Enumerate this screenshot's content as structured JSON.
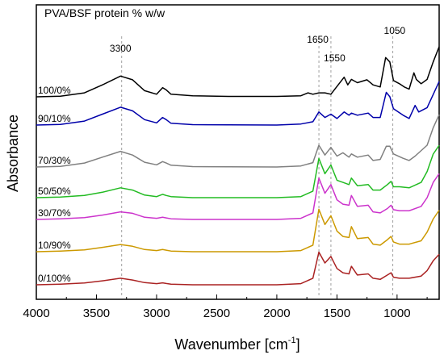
{
  "chart_data": {
    "type": "line",
    "title": "PVA/BSF protein % w/w",
    "xlabel": "Wavenumber [cm",
    "xlabel_sup": "-1",
    "xlabel_end": "]",
    "ylabel": "Absorbance",
    "xlim": [
      4000,
      650
    ],
    "x_reversed": true,
    "xticks": [
      4000,
      3500,
      3000,
      2500,
      2000,
      1500,
      1000
    ],
    "grid": false,
    "annotations": [
      {
        "text": "3300",
        "x": 3300
      },
      {
        "text": "1650",
        "x": 1650
      },
      {
        "text": "1550",
        "x": 1550
      },
      {
        "text": "1050",
        "x": 1050
      }
    ],
    "reference_lines_x": [
      3290,
      1650,
      1550,
      1035
    ],
    "series": [
      {
        "name": "100/0%",
        "color": "#000000",
        "offset": 6,
        "p": [
          [
            4000,
            0.0
          ],
          [
            3800,
            0.03
          ],
          [
            3600,
            0.18
          ],
          [
            3450,
            0.55
          ],
          [
            3300,
            0.95
          ],
          [
            3200,
            0.78
          ],
          [
            3100,
            0.28
          ],
          [
            3000,
            0.12
          ],
          [
            2950,
            0.42
          ],
          [
            2920,
            0.32
          ],
          [
            2880,
            0.12
          ],
          [
            2700,
            0.05
          ],
          [
            2400,
            0.02
          ],
          [
            2000,
            0.02
          ],
          [
            1800,
            0.05
          ],
          [
            1740,
            0.18
          ],
          [
            1700,
            0.12
          ],
          [
            1650,
            0.18
          ],
          [
            1600,
            0.18
          ],
          [
            1550,
            0.12
          ],
          [
            1440,
            0.9
          ],
          [
            1410,
            0.55
          ],
          [
            1380,
            0.8
          ],
          [
            1330,
            0.65
          ],
          [
            1250,
            0.78
          ],
          [
            1200,
            0.55
          ],
          [
            1140,
            0.45
          ],
          [
            1095,
            1.8
          ],
          [
            1060,
            1.6
          ],
          [
            1030,
            0.75
          ],
          [
            980,
            0.6
          ],
          [
            940,
            0.45
          ],
          [
            900,
            0.35
          ],
          [
            860,
            1.1
          ],
          [
            840,
            0.8
          ],
          [
            800,
            0.6
          ],
          [
            750,
            0.8
          ],
          [
            700,
            1.6
          ],
          [
            650,
            2.3
          ]
        ]
      },
      {
        "name": "90/10%",
        "color": "#0000aa",
        "offset": 5,
        "p": [
          [
            4000,
            0.0
          ],
          [
            3800,
            0.03
          ],
          [
            3600,
            0.18
          ],
          [
            3450,
            0.5
          ],
          [
            3300,
            0.82
          ],
          [
            3200,
            0.65
          ],
          [
            3100,
            0.25
          ],
          [
            3000,
            0.1
          ],
          [
            2950,
            0.35
          ],
          [
            2920,
            0.25
          ],
          [
            2880,
            0.08
          ],
          [
            2700,
            0.02
          ],
          [
            2000,
            0.0
          ],
          [
            1800,
            0.05
          ],
          [
            1700,
            0.15
          ],
          [
            1650,
            0.6
          ],
          [
            1600,
            0.35
          ],
          [
            1550,
            0.5
          ],
          [
            1500,
            0.3
          ],
          [
            1440,
            0.6
          ],
          [
            1400,
            0.45
          ],
          [
            1380,
            0.55
          ],
          [
            1330,
            0.45
          ],
          [
            1240,
            0.55
          ],
          [
            1200,
            0.35
          ],
          [
            1140,
            0.35
          ],
          [
            1090,
            1.5
          ],
          [
            1060,
            1.3
          ],
          [
            1030,
            0.75
          ],
          [
            950,
            0.45
          ],
          [
            900,
            0.3
          ],
          [
            850,
            0.9
          ],
          [
            820,
            0.6
          ],
          [
            750,
            0.8
          ],
          [
            700,
            1.4
          ],
          [
            650,
            2.0
          ]
        ]
      },
      {
        "name": "70/30%",
        "color": "#808080",
        "offset": 4,
        "p": [
          [
            4000,
            0.0
          ],
          [
            3800,
            0.03
          ],
          [
            3600,
            0.18
          ],
          [
            3450,
            0.45
          ],
          [
            3300,
            0.72
          ],
          [
            3200,
            0.55
          ],
          [
            3100,
            0.22
          ],
          [
            3000,
            0.1
          ],
          [
            2950,
            0.25
          ],
          [
            2920,
            0.18
          ],
          [
            2880,
            0.08
          ],
          [
            2700,
            0.02
          ],
          [
            2000,
            0.0
          ],
          [
            1800,
            0.05
          ],
          [
            1700,
            0.2
          ],
          [
            1650,
            1.0
          ],
          [
            1600,
            0.55
          ],
          [
            1550,
            0.9
          ],
          [
            1500,
            0.5
          ],
          [
            1450,
            0.65
          ],
          [
            1400,
            0.45
          ],
          [
            1380,
            0.6
          ],
          [
            1330,
            0.45
          ],
          [
            1240,
            0.55
          ],
          [
            1200,
            0.3
          ],
          [
            1140,
            0.35
          ],
          [
            1090,
            0.95
          ],
          [
            1060,
            0.95
          ],
          [
            1030,
            0.6
          ],
          [
            950,
            0.4
          ],
          [
            900,
            0.3
          ],
          [
            850,
            0.5
          ],
          [
            750,
            1.0
          ],
          [
            700,
            1.8
          ],
          [
            650,
            2.4
          ]
        ]
      },
      {
        "name": "50/50%",
        "color": "#22bb22",
        "offset": 3,
        "p": [
          [
            4000,
            0.0
          ],
          [
            3800,
            0.03
          ],
          [
            3600,
            0.1
          ],
          [
            3450,
            0.25
          ],
          [
            3300,
            0.45
          ],
          [
            3200,
            0.35
          ],
          [
            3100,
            0.12
          ],
          [
            3000,
            0.05
          ],
          [
            2950,
            0.15
          ],
          [
            2920,
            0.1
          ],
          [
            2880,
            0.05
          ],
          [
            2700,
            0.0
          ],
          [
            2000,
            0.0
          ],
          [
            1800,
            0.05
          ],
          [
            1700,
            0.3
          ],
          [
            1650,
            1.8
          ],
          [
            1600,
            1.1
          ],
          [
            1550,
            1.5
          ],
          [
            1500,
            0.8
          ],
          [
            1450,
            0.7
          ],
          [
            1400,
            0.6
          ],
          [
            1380,
            0.9
          ],
          [
            1330,
            0.55
          ],
          [
            1240,
            0.6
          ],
          [
            1200,
            0.35
          ],
          [
            1140,
            0.35
          ],
          [
            1080,
            0.6
          ],
          [
            1050,
            0.75
          ],
          [
            1030,
            0.5
          ],
          [
            980,
            0.5
          ],
          [
            900,
            0.45
          ],
          [
            800,
            0.7
          ],
          [
            750,
            1.2
          ],
          [
            700,
            2.0
          ],
          [
            650,
            2.4
          ]
        ]
      },
      {
        "name": "30/70%",
        "color": "#cc33cc",
        "offset": 2,
        "p": [
          [
            4000,
            0.0
          ],
          [
            3800,
            0.03
          ],
          [
            3600,
            0.08
          ],
          [
            3450,
            0.2
          ],
          [
            3300,
            0.35
          ],
          [
            3200,
            0.28
          ],
          [
            3100,
            0.1
          ],
          [
            3000,
            0.05
          ],
          [
            2950,
            0.1
          ],
          [
            2920,
            0.07
          ],
          [
            2880,
            0.03
          ],
          [
            2700,
            0.0
          ],
          [
            2000,
            0.0
          ],
          [
            1800,
            0.05
          ],
          [
            1700,
            0.3
          ],
          [
            1650,
            1.9
          ],
          [
            1600,
            1.2
          ],
          [
            1550,
            1.6
          ],
          [
            1500,
            0.9
          ],
          [
            1450,
            0.7
          ],
          [
            1400,
            0.65
          ],
          [
            1380,
            1.1
          ],
          [
            1330,
            0.6
          ],
          [
            1240,
            0.65
          ],
          [
            1200,
            0.35
          ],
          [
            1140,
            0.3
          ],
          [
            1080,
            0.5
          ],
          [
            1050,
            0.65
          ],
          [
            1030,
            0.45
          ],
          [
            980,
            0.4
          ],
          [
            900,
            0.4
          ],
          [
            800,
            0.6
          ],
          [
            750,
            1.0
          ],
          [
            700,
            1.7
          ],
          [
            650,
            2.1
          ]
        ]
      },
      {
        "name": "10/90%",
        "color": "#cc9900",
        "offset": 1,
        "p": [
          [
            4000,
            0.0
          ],
          [
            3800,
            0.03
          ],
          [
            3600,
            0.08
          ],
          [
            3450,
            0.2
          ],
          [
            3300,
            0.33
          ],
          [
            3200,
            0.25
          ],
          [
            3100,
            0.1
          ],
          [
            3000,
            0.05
          ],
          [
            2950,
            0.1
          ],
          [
            2920,
            0.07
          ],
          [
            2880,
            0.03
          ],
          [
            2700,
            0.0
          ],
          [
            2000,
            0.0
          ],
          [
            1800,
            0.05
          ],
          [
            1700,
            0.3
          ],
          [
            1650,
            1.95
          ],
          [
            1600,
            1.25
          ],
          [
            1550,
            1.65
          ],
          [
            1500,
            0.95
          ],
          [
            1450,
            0.7
          ],
          [
            1400,
            0.65
          ],
          [
            1380,
            1.15
          ],
          [
            1330,
            0.6
          ],
          [
            1240,
            0.65
          ],
          [
            1200,
            0.35
          ],
          [
            1140,
            0.3
          ],
          [
            1080,
            0.55
          ],
          [
            1050,
            0.7
          ],
          [
            1030,
            0.45
          ],
          [
            980,
            0.35
          ],
          [
            900,
            0.35
          ],
          [
            800,
            0.5
          ],
          [
            750,
            0.9
          ],
          [
            700,
            1.5
          ],
          [
            650,
            1.9
          ]
        ]
      },
      {
        "name": "0/100%",
        "color": "#aa2222",
        "offset": 0,
        "p": [
          [
            4000,
            0.0
          ],
          [
            3800,
            0.03
          ],
          [
            3600,
            0.08
          ],
          [
            3450,
            0.18
          ],
          [
            3300,
            0.3
          ],
          [
            3200,
            0.22
          ],
          [
            3100,
            0.1
          ],
          [
            3000,
            0.05
          ],
          [
            2950,
            0.09
          ],
          [
            2920,
            0.06
          ],
          [
            2880,
            0.03
          ],
          [
            2700,
            0.0
          ],
          [
            2000,
            0.0
          ],
          [
            1800,
            0.05
          ],
          [
            1700,
            0.3
          ],
          [
            1650,
            1.5
          ],
          [
            1600,
            1.0
          ],
          [
            1550,
            1.3
          ],
          [
            1500,
            0.75
          ],
          [
            1450,
            0.55
          ],
          [
            1400,
            0.5
          ],
          [
            1380,
            0.85
          ],
          [
            1330,
            0.45
          ],
          [
            1240,
            0.5
          ],
          [
            1200,
            0.3
          ],
          [
            1140,
            0.25
          ],
          [
            1080,
            0.45
          ],
          [
            1050,
            0.55
          ],
          [
            1030,
            0.35
          ],
          [
            980,
            0.3
          ],
          [
            900,
            0.3
          ],
          [
            800,
            0.4
          ],
          [
            750,
            0.65
          ],
          [
            700,
            1.1
          ],
          [
            650,
            1.4
          ]
        ]
      }
    ]
  }
}
